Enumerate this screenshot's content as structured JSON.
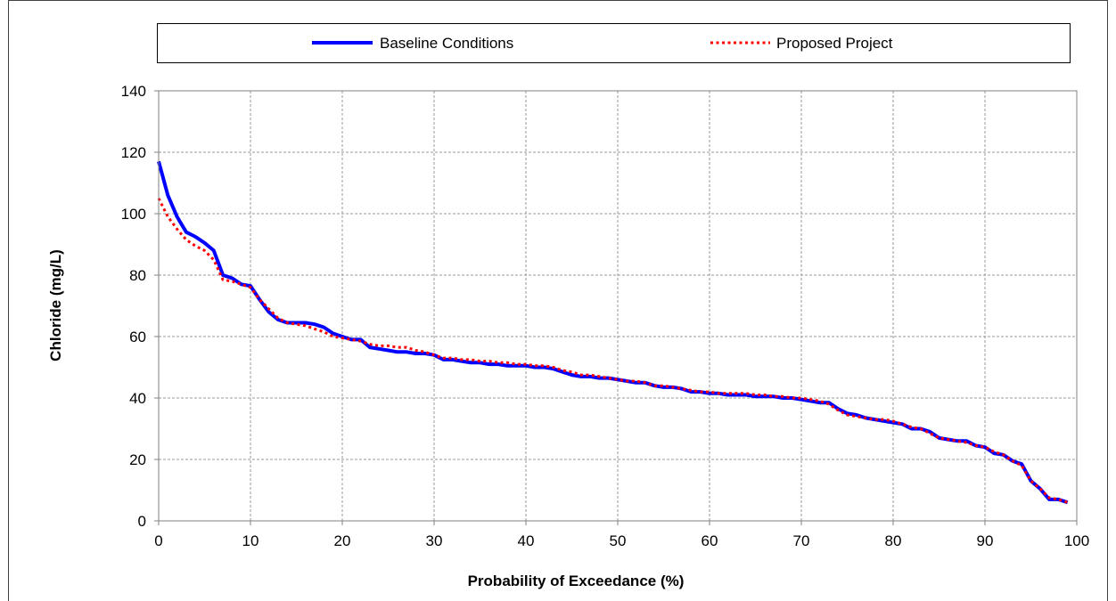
{
  "chart_data": {
    "type": "line",
    "xlabel": "Probability of Exceedance (%)",
    "ylabel": "Chloride (mg/L)",
    "xlim": [
      0,
      100
    ],
    "ylim": [
      0,
      140
    ],
    "x_ticks": [
      "0",
      "10",
      "20",
      "30",
      "40",
      "50",
      "60",
      "70",
      "80",
      "90",
      "100"
    ],
    "y_ticks": [
      "0",
      "20",
      "40",
      "60",
      "80",
      "100",
      "120",
      "140"
    ],
    "grid": true,
    "legend_position": "top",
    "series": [
      {
        "name": "Baseline Conditions",
        "color": "#0000ff",
        "style": "solid",
        "points": [
          [
            0,
            117
          ],
          [
            1,
            106
          ],
          [
            2,
            99
          ],
          [
            3,
            94
          ],
          [
            4,
            92.5
          ],
          [
            5,
            90.5
          ],
          [
            6,
            88
          ],
          [
            7,
            80
          ],
          [
            8,
            79
          ],
          [
            9,
            77
          ],
          [
            10,
            76.5
          ],
          [
            11,
            72
          ],
          [
            12,
            68
          ],
          [
            13,
            65.5
          ],
          [
            14,
            64.5
          ],
          [
            15,
            64.5
          ],
          [
            16,
            64.5
          ],
          [
            17,
            64
          ],
          [
            18,
            63
          ],
          [
            19,
            61
          ],
          [
            20,
            60
          ],
          [
            21,
            59
          ],
          [
            22,
            59
          ],
          [
            23,
            56.5
          ],
          [
            24,
            56
          ],
          [
            25,
            55.5
          ],
          [
            26,
            55
          ],
          [
            27,
            55
          ],
          [
            28,
            54.5
          ],
          [
            29,
            54.5
          ],
          [
            30,
            54
          ],
          [
            31,
            52.5
          ],
          [
            32,
            52.5
          ],
          [
            33,
            52
          ],
          [
            34,
            51.5
          ],
          [
            35,
            51.5
          ],
          [
            36,
            51
          ],
          [
            37,
            51
          ],
          [
            38,
            50.5
          ],
          [
            39,
            50.5
          ],
          [
            40,
            50.5
          ],
          [
            41,
            50
          ],
          [
            42,
            50
          ],
          [
            43,
            49.5
          ],
          [
            44,
            48.5
          ],
          [
            45,
            47.5
          ],
          [
            46,
            47
          ],
          [
            47,
            47
          ],
          [
            48,
            46.5
          ],
          [
            49,
            46.5
          ],
          [
            50,
            46
          ],
          [
            51,
            45.5
          ],
          [
            52,
            45
          ],
          [
            53,
            45
          ],
          [
            54,
            44
          ],
          [
            55,
            43.5
          ],
          [
            56,
            43.5
          ],
          [
            57,
            43
          ],
          [
            58,
            42
          ],
          [
            59,
            42
          ],
          [
            60,
            41.5
          ],
          [
            61,
            41.5
          ],
          [
            62,
            41
          ],
          [
            63,
            41
          ],
          [
            64,
            41
          ],
          [
            65,
            40.5
          ],
          [
            66,
            40.5
          ],
          [
            67,
            40.5
          ],
          [
            68,
            40
          ],
          [
            69,
            40
          ],
          [
            70,
            39.5
          ],
          [
            71,
            39
          ],
          [
            72,
            38.5
          ],
          [
            73,
            38.5
          ],
          [
            74,
            36.5
          ],
          [
            75,
            35
          ],
          [
            76,
            34.5
          ],
          [
            77,
            33.5
          ],
          [
            78,
            33
          ],
          [
            79,
            32.5
          ],
          [
            80,
            32
          ],
          [
            81,
            31.5
          ],
          [
            82,
            30
          ],
          [
            83,
            30
          ],
          [
            84,
            29
          ],
          [
            85,
            27
          ],
          [
            86,
            26.5
          ],
          [
            87,
            26
          ],
          [
            88,
            26
          ],
          [
            89,
            24.5
          ],
          [
            90,
            24
          ],
          [
            91,
            22
          ],
          [
            92,
            21.5
          ],
          [
            93,
            19.5
          ],
          [
            94,
            18.5
          ],
          [
            95,
            13
          ],
          [
            96,
            10.5
          ],
          [
            97,
            7
          ],
          [
            98,
            7
          ],
          [
            99,
            6
          ]
        ]
      },
      {
        "name": "Proposed Project",
        "color": "#ff0000",
        "style": "dotted",
        "points": [
          [
            0,
            105
          ],
          [
            1,
            99
          ],
          [
            2,
            95
          ],
          [
            3,
            91.5
          ],
          [
            4,
            89.5
          ],
          [
            5,
            88
          ],
          [
            6,
            85
          ],
          [
            7,
            78.5
          ],
          [
            8,
            78
          ],
          [
            9,
            77
          ],
          [
            10,
            76
          ],
          [
            11,
            72
          ],
          [
            12,
            69
          ],
          [
            13,
            66
          ],
          [
            14,
            64.5
          ],
          [
            15,
            64
          ],
          [
            16,
            63.5
          ],
          [
            17,
            62.5
          ],
          [
            18,
            61.5
          ],
          [
            19,
            60
          ],
          [
            20,
            59.5
          ],
          [
            21,
            59
          ],
          [
            22,
            58.5
          ],
          [
            23,
            57.5
          ],
          [
            24,
            57
          ],
          [
            25,
            57
          ],
          [
            26,
            56.5
          ],
          [
            27,
            56.5
          ],
          [
            28,
            55.5
          ],
          [
            29,
            55
          ],
          [
            30,
            54
          ],
          [
            31,
            53
          ],
          [
            32,
            53
          ],
          [
            33,
            52.5
          ],
          [
            34,
            52.5
          ],
          [
            35,
            52
          ],
          [
            36,
            52
          ],
          [
            37,
            51.5
          ],
          [
            38,
            51.5
          ],
          [
            39,
            51
          ],
          [
            40,
            51
          ],
          [
            41,
            50.5
          ],
          [
            42,
            50.5
          ],
          [
            43,
            50
          ],
          [
            44,
            49
          ],
          [
            45,
            48.5
          ],
          [
            46,
            47.5
          ],
          [
            47,
            47.5
          ],
          [
            48,
            47
          ],
          [
            49,
            46.5
          ],
          [
            50,
            46
          ],
          [
            51,
            45.5
          ],
          [
            52,
            45.5
          ],
          [
            53,
            45
          ],
          [
            54,
            44
          ],
          [
            55,
            44
          ],
          [
            56,
            43.5
          ],
          [
            57,
            43
          ],
          [
            58,
            42.5
          ],
          [
            59,
            42
          ],
          [
            60,
            42
          ],
          [
            61,
            41.5
          ],
          [
            62,
            41.5
          ],
          [
            63,
            41.5
          ],
          [
            64,
            41.5
          ],
          [
            65,
            41
          ],
          [
            66,
            41
          ],
          [
            67,
            40.5
          ],
          [
            68,
            40.5
          ],
          [
            69,
            40
          ],
          [
            70,
            40
          ],
          [
            71,
            39.5
          ],
          [
            72,
            39
          ],
          [
            73,
            38
          ],
          [
            74,
            36
          ],
          [
            75,
            34.5
          ],
          [
            76,
            34
          ],
          [
            77,
            33.5
          ],
          [
            78,
            33
          ],
          [
            79,
            33
          ],
          [
            80,
            32.5
          ],
          [
            81,
            31.5
          ],
          [
            82,
            30.5
          ],
          [
            83,
            30
          ],
          [
            84,
            28.5
          ],
          [
            85,
            27
          ],
          [
            86,
            26.5
          ],
          [
            87,
            26
          ],
          [
            88,
            25.5
          ],
          [
            89,
            24.5
          ],
          [
            90,
            24
          ],
          [
            91,
            22.5
          ],
          [
            92,
            21.5
          ],
          [
            93,
            19.5
          ],
          [
            94,
            18
          ],
          [
            95,
            13
          ],
          [
            96,
            10.5
          ],
          [
            97,
            7.5
          ],
          [
            98,
            7
          ],
          [
            99,
            6
          ]
        ]
      }
    ]
  }
}
